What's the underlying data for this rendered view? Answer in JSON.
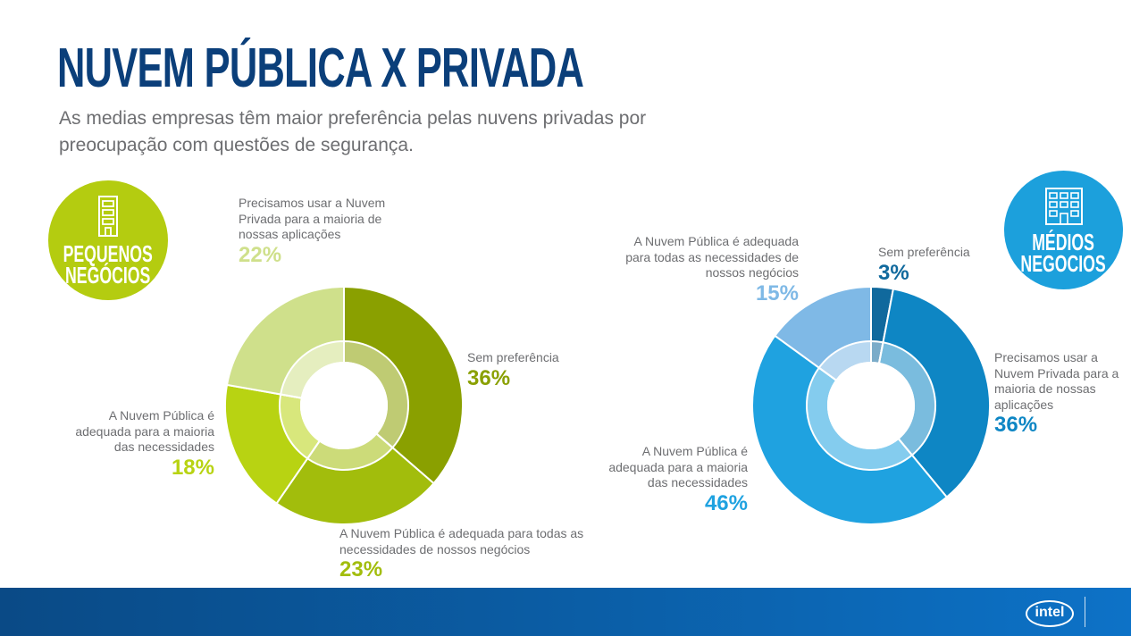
{
  "title": "NUVEM PÚBLICA X PRIVADA",
  "subtitle": "As medias empresas têm maior preferência pelas nuvens privadas por preocupação com questões de segurança.",
  "badges": {
    "left": {
      "label": "PEQUENOS\nNEGÓCIOS",
      "icon": "small-building-icon",
      "color": "#b4cc10"
    },
    "right": {
      "label": "MÉDIOS\nNEGOCIOS",
      "icon": "office-building-icon",
      "color": "#1ca0dc"
    }
  },
  "footer": {
    "logo_text": "intel"
  },
  "chart_data": [
    {
      "type": "pie",
      "variant": "donut",
      "group": "PEQUENOS NEGÓCIOS",
      "slices": [
        {
          "label": "Sem preferência",
          "value": 36,
          "display": "36%",
          "color": "#8aa000"
        },
        {
          "label": "A Nuvem Pública é adequada para todas as necessidades de nossos negócios",
          "value": 23,
          "display": "23%",
          "color": "#a2bd0c"
        },
        {
          "label": "A Nuvem Pública é adequada para a maioria das necessidades",
          "value": 18,
          "display": "18%",
          "color": "#b8d312"
        },
        {
          "label": "Precisamos usar a Nuvem Privada para a maioria de nossas aplicações",
          "value": 22,
          "display": "22%",
          "color": "#cfe08b"
        }
      ]
    },
    {
      "type": "pie",
      "variant": "donut",
      "group": "MÉDIOS NEGOCIOS",
      "slices": [
        {
          "label": "Sem preferência",
          "value": 3,
          "display": "3%",
          "color": "#10699d"
        },
        {
          "label": "Precisamos usar a Nuvem Privada para a maioria de nossas aplicações",
          "value": 36,
          "display": "36%",
          "color": "#0e86c4"
        },
        {
          "label": "A Nuvem Pública é adequada para a maioria das necessidades",
          "value": 46,
          "display": "46%",
          "color": "#1fa2e0"
        },
        {
          "label": "A Nuvem Pública é adequada para todas as necessidades de nossos negócios",
          "value": 15,
          "display": "15%",
          "color": "#7fb9e6"
        }
      ]
    }
  ]
}
